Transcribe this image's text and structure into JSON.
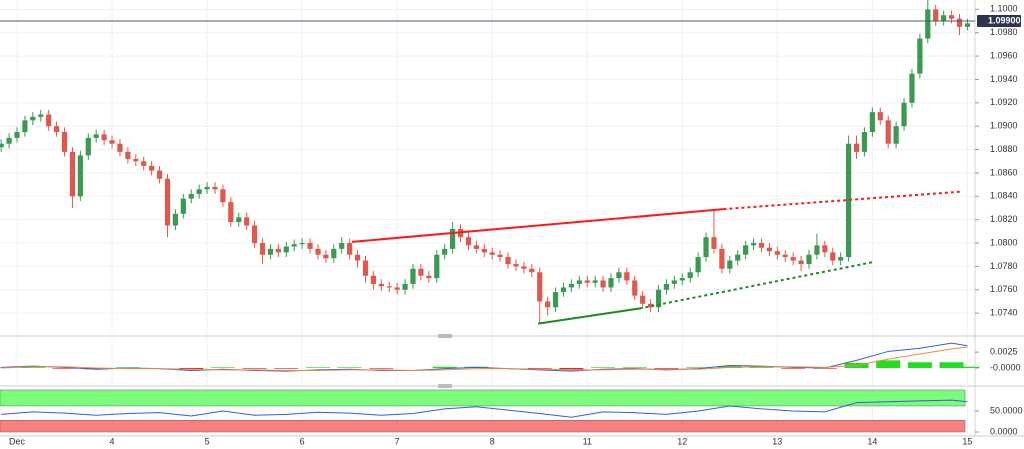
{
  "chart_data": [
    {
      "type": "candlestick",
      "categories": [
        null,
        null,
        "Dec",
        null,
        null,
        null,
        null,
        null,
        null,
        null,
        null,
        null,
        null,
        null,
        "4",
        null,
        null,
        null,
        null,
        null,
        null,
        null,
        null,
        null,
        null,
        null,
        "5",
        null,
        null,
        null,
        null,
        null,
        null,
        null,
        null,
        null,
        null,
        null,
        "6",
        null,
        null,
        null,
        null,
        null,
        null,
        null,
        null,
        null,
        null,
        null,
        "7",
        null,
        null,
        null,
        null,
        null,
        null,
        null,
        null,
        null,
        null,
        null,
        "8",
        null,
        null,
        null,
        null,
        null,
        null,
        null,
        null,
        null,
        null,
        null,
        "11",
        null,
        null,
        null,
        null,
        null,
        null,
        null,
        null,
        null,
        null,
        null,
        "12",
        null,
        null,
        null,
        null,
        null,
        null,
        null,
        null,
        null,
        null,
        null,
        "13",
        null,
        null,
        null,
        null,
        null,
        null,
        null,
        null,
        null,
        null,
        null,
        "14",
        null,
        null,
        null,
        null,
        null,
        null,
        null,
        null,
        null,
        null,
        null,
        "15"
      ],
      "open": [
        1.0882,
        1.0885,
        1.089,
        1.0895,
        1.0905,
        1.0908,
        1.091,
        1.09,
        1.0895,
        1.0878,
        1.084,
        1.0875,
        1.089,
        1.0893,
        1.0888,
        1.0885,
        1.0878,
        1.0872,
        1.087,
        1.0866,
        1.0862,
        1.0855,
        1.0815,
        1.0825,
        1.0838,
        1.0842,
        1.0846,
        1.0848,
        1.0846,
        1.0835,
        1.0818,
        1.0822,
        1.0815,
        1.08,
        1.079,
        1.0795,
        1.0792,
        1.0797,
        1.0799,
        1.08,
        1.0795,
        1.079,
        1.0787,
        1.0795,
        1.08,
        1.079,
        1.0785,
        1.0772,
        1.0765,
        1.0763,
        1.0762,
        1.076,
        1.0765,
        1.0778,
        1.0772,
        1.077,
        1.079,
        1.0795,
        1.0812,
        1.0805,
        1.0798,
        1.0795,
        1.0792,
        1.079,
        1.0788,
        1.0782,
        1.078,
        1.0778,
        1.0775,
        1.075,
        1.0745,
        1.0758,
        1.0762,
        1.0765,
        1.0768,
        1.0766,
        1.0768,
        1.0762,
        1.077,
        1.0775,
        1.0768,
        1.0755,
        1.0748,
        1.0745,
        1.076,
        1.0765,
        1.0768,
        1.077,
        1.0775,
        1.0788,
        1.0805,
        1.0795,
        1.0778,
        1.0785,
        1.079,
        1.0798,
        1.08,
        1.0796,
        1.0793,
        1.079,
        1.0788,
        1.0785,
        1.0782,
        1.079,
        1.0798,
        1.0792,
        1.0785,
        1.0788,
        1.0885,
        1.0878,
        1.0895,
        1.0912,
        1.0905,
        1.0885,
        1.09,
        1.092,
        1.0945,
        1.0975,
        1.1,
        1.099,
        1.0995,
        1.0992,
        1.0985
      ],
      "high": [
        1.0889,
        1.0894,
        1.0899,
        1.0909,
        1.0912,
        1.0914,
        1.0914,
        1.0904,
        1.0899,
        1.0882,
        1.0879,
        1.0894,
        1.0897,
        1.0897,
        1.0892,
        1.0889,
        1.0882,
        1.0876,
        1.0874,
        1.087,
        1.0866,
        1.0859,
        1.0829,
        1.0842,
        1.0846,
        1.085,
        1.0852,
        1.0852,
        1.085,
        1.0839,
        1.0826,
        1.0826,
        1.0819,
        1.0804,
        1.0799,
        1.0799,
        1.0801,
        1.0803,
        1.0804,
        1.0804,
        1.0799,
        1.0794,
        1.0799,
        1.0805,
        1.0804,
        1.0794,
        1.0789,
        1.0776,
        1.0769,
        1.0767,
        1.0766,
        1.0769,
        1.0782,
        1.0782,
        1.0776,
        1.0794,
        1.0799,
        1.0818,
        1.0816,
        1.0809,
        1.0802,
        1.0799,
        1.0796,
        1.0794,
        1.0792,
        1.0786,
        1.0784,
        1.0782,
        1.0779,
        1.0754,
        1.0762,
        1.0766,
        1.0769,
        1.0772,
        1.0772,
        1.0772,
        1.0772,
        1.0774,
        1.0779,
        1.0779,
        1.0772,
        1.0759,
        1.0752,
        1.0764,
        1.0769,
        1.0772,
        1.0774,
        1.0779,
        1.0792,
        1.0809,
        1.0829,
        1.0799,
        1.0789,
        1.0794,
        1.0802,
        1.0804,
        1.0804,
        1.08,
        1.0797,
        1.0794,
        1.0792,
        1.0789,
        1.0794,
        1.0808,
        1.0802,
        1.0796,
        1.0792,
        1.0892,
        1.0892,
        1.0899,
        1.0916,
        1.0916,
        1.0909,
        1.0904,
        1.0924,
        1.0949,
        1.0979,
        1.1008,
        1.1004,
        1.0999,
        1.0999,
        1.0996,
        1.0992
      ],
      "low": [
        1.0878,
        1.0881,
        1.0886,
        1.0891,
        1.0901,
        1.0904,
        1.0896,
        1.0891,
        1.0874,
        1.083,
        1.0836,
        1.0871,
        1.0886,
        1.0884,
        1.0881,
        1.0874,
        1.0868,
        1.0866,
        1.0862,
        1.0858,
        1.0851,
        1.0805,
        1.0811,
        1.0821,
        1.0834,
        1.0838,
        1.0842,
        1.0842,
        1.0831,
        1.0814,
        1.0814,
        1.0811,
        1.0796,
        1.0782,
        1.0786,
        1.0788,
        1.0788,
        1.0793,
        1.0795,
        1.0791,
        1.0786,
        1.0783,
        1.0783,
        1.0791,
        1.0786,
        1.0779,
        1.0766,
        1.076,
        1.0759,
        1.0758,
        1.0756,
        1.0756,
        1.0761,
        1.0768,
        1.0766,
        1.0766,
        1.0786,
        1.0791,
        1.0801,
        1.0794,
        1.0791,
        1.0788,
        1.0786,
        1.0784,
        1.0778,
        1.0776,
        1.0774,
        1.0771,
        1.0732,
        1.0738,
        1.0741,
        1.0754,
        1.0758,
        1.0761,
        1.0762,
        1.0762,
        1.0758,
        1.0758,
        1.0766,
        1.0764,
        1.0751,
        1.0744,
        1.0741,
        1.0741,
        1.0756,
        1.0761,
        1.0764,
        1.0766,
        1.0771,
        1.0784,
        1.0791,
        1.0774,
        1.0774,
        1.0781,
        1.0786,
        1.0794,
        1.0792,
        1.0789,
        1.0786,
        1.0784,
        1.0781,
        1.0776,
        1.0778,
        1.0786,
        1.0788,
        1.0781,
        1.0781,
        1.0784,
        1.0872,
        1.0874,
        1.0891,
        1.0901,
        1.0881,
        1.0881,
        1.0896,
        1.0916,
        1.0941,
        1.0971,
        1.0986,
        1.0986,
        1.0988,
        1.0978,
        1.0982
      ],
      "close": [
        1.0885,
        1.089,
        1.0895,
        1.0905,
        1.0908,
        1.091,
        1.09,
        1.0895,
        1.0878,
        1.084,
        1.0875,
        1.089,
        1.0893,
        1.0888,
        1.0885,
        1.0878,
        1.0872,
        1.087,
        1.0866,
        1.0862,
        1.0855,
        1.0815,
        1.0825,
        1.0838,
        1.0842,
        1.0846,
        1.0848,
        1.0846,
        1.0835,
        1.0818,
        1.0822,
        1.0815,
        1.08,
        1.079,
        1.0795,
        1.0792,
        1.0797,
        1.0799,
        1.08,
        1.0795,
        1.079,
        1.0787,
        1.0795,
        1.08,
        1.079,
        1.0785,
        1.0772,
        1.0765,
        1.0763,
        1.0762,
        1.076,
        1.0765,
        1.0778,
        1.0772,
        1.077,
        1.079,
        1.0795,
        1.0812,
        1.0805,
        1.0798,
        1.0795,
        1.0792,
        1.079,
        1.0788,
        1.0782,
        1.078,
        1.0778,
        1.0775,
        1.075,
        1.0745,
        1.0758,
        1.0762,
        1.0765,
        1.0768,
        1.0766,
        1.0768,
        1.0762,
        1.077,
        1.0775,
        1.0768,
        1.0755,
        1.0748,
        1.0745,
        1.076,
        1.0765,
        1.0768,
        1.077,
        1.0775,
        1.0788,
        1.0805,
        1.0795,
        1.0778,
        1.0785,
        1.079,
        1.0798,
        1.08,
        1.0796,
        1.0793,
        1.079,
        1.0788,
        1.0785,
        1.0782,
        1.079,
        1.0798,
        1.0792,
        1.0785,
        1.0788,
        1.0885,
        1.0878,
        1.0895,
        1.0912,
        1.0905,
        1.0885,
        1.09,
        1.092,
        1.0945,
        1.0975,
        1.1,
        1.099,
        1.0995,
        1.0992,
        1.0985,
        1.0988
      ],
      "up_color": "#3a9a4f",
      "down_color": "#e2574c",
      "ylim": [
        1.0723,
        1.1008
      ],
      "yticks": [
        {
          "value": 1.074,
          "label": "1.0740"
        },
        {
          "value": 1.076,
          "label": "1.0760"
        },
        {
          "value": 1.078,
          "label": "1.0780"
        },
        {
          "value": 1.08,
          "label": "1.0800"
        },
        {
          "value": 1.082,
          "label": "1.0820"
        },
        {
          "value": 1.084,
          "label": "1.0840"
        },
        {
          "value": 1.086,
          "label": "1.0860"
        },
        {
          "value": 1.088,
          "label": "1.0880"
        },
        {
          "value": 1.09,
          "label": "1.0900"
        },
        {
          "value": 1.092,
          "label": "1.0920"
        },
        {
          "value": 1.094,
          "label": "1.0940"
        },
        {
          "value": 1.096,
          "label": "1.0960"
        },
        {
          "value": 1.098,
          "label": "1.0980"
        },
        {
          "value": 1.1,
          "label": "1.1000"
        }
      ],
      "grid": true,
      "last_price": {
        "value": 1.099,
        "label": "1.09900"
      },
      "trendlines": [
        {
          "color": "#ff1a1a",
          "style": [
            "solid",
            "dotted"
          ],
          "x": [
            44.3,
            91.2,
            121.3
          ],
          "y": [
            1.0801,
            1.0829,
            1.0844
          ]
        },
        {
          "color": "#1e8a1e",
          "style": [
            "solid",
            "dotted"
          ],
          "x": [
            67.8,
            80.6,
            110.3
          ],
          "y": [
            1.0731,
            1.0744,
            1.0784
          ]
        }
      ]
    },
    {
      "type": "macd",
      "x": [
        0,
        4,
        8,
        12,
        16,
        20,
        24,
        28,
        32,
        36,
        40,
        44,
        48,
        52,
        56,
        60,
        64,
        68,
        72,
        76,
        80,
        84,
        88,
        92,
        96,
        100,
        104,
        108,
        112,
        116,
        120,
        122
      ],
      "ylim": [
        -0.0022,
        0.0044
      ],
      "yticks": [
        {
          "value": 0.0025,
          "label": "0.0025"
        },
        {
          "value": 0,
          "label": "-0.0000"
        }
      ],
      "series": [
        {
          "color": "#3b5bdb",
          "values": [
            0.0001,
            0.0003,
            0.0001,
            -0.0002,
            0.0,
            -0.0001,
            -0.0004,
            -0.0002,
            -0.0004,
            -0.0005,
            -0.0003,
            -0.0002,
            -0.0004,
            -0.0004,
            -0.0001,
            0.0001,
            -0.0001,
            -0.0003,
            -0.0005,
            -0.0002,
            -0.0001,
            -0.0003,
            -0.0001,
            0.0004,
            0.0003,
            0.0001,
            0.0,
            0.0012,
            0.0026,
            0.0031,
            0.0039,
            0.0035
          ]
        },
        {
          "color": "#f08c3a",
          "values": [
            0.0,
            0.0002,
            0.0002,
            0.0,
            -0.0001,
            -0.0001,
            -0.0002,
            -0.0003,
            -0.0003,
            -0.0004,
            -0.0004,
            -0.0003,
            -0.0003,
            -0.0004,
            -0.0003,
            -0.0001,
            -0.0001,
            -0.0002,
            -0.0003,
            -0.0003,
            -0.0002,
            -0.0002,
            -0.0002,
            0.0001,
            0.0002,
            0.0002,
            0.0001,
            0.0004,
            0.0014,
            0.0022,
            0.003,
            0.0033
          ]
        }
      ],
      "histogram": {
        "up_color": "#22dd22",
        "down_color": "#ee2222",
        "values": [
          0.0001,
          0.0001,
          -0.0001,
          -0.0002,
          0.0001,
          0.0,
          -0.0002,
          0.0001,
          -0.0001,
          -0.0001,
          0.0001,
          0.0001,
          -0.0001,
          0.0,
          0.0002,
          0.0002,
          0.0,
          -0.0001,
          -0.0002,
          0.0001,
          0.0001,
          -0.0001,
          0.0001,
          0.0003,
          0.0001,
          -0.0001,
          -0.0001,
          0.0008,
          0.0012,
          0.0009,
          0.0009,
          0.0002
        ]
      }
    },
    {
      "type": "oscillator",
      "x": [
        0,
        4,
        8,
        12,
        16,
        20,
        24,
        28,
        32,
        36,
        40,
        44,
        48,
        52,
        56,
        60,
        64,
        68,
        72,
        76,
        80,
        84,
        88,
        92,
        96,
        100,
        104,
        108,
        112,
        116,
        120,
        122
      ],
      "ylim": [
        0,
        100
      ],
      "yticks": [
        {
          "value": 50,
          "label": "50.0000"
        },
        {
          "value": 0,
          "label": "0.0000"
        }
      ],
      "bands": [
        {
          "range": [
            62,
            100
          ],
          "color": "#7dfb7d"
        },
        {
          "range": [
            0,
            28
          ],
          "color": "#f98080"
        }
      ],
      "series": [
        {
          "color": "#3b5bdb",
          "values": [
            42,
            48,
            45,
            40,
            44,
            46,
            38,
            50,
            40,
            42,
            47,
            45,
            40,
            44,
            55,
            60,
            52,
            44,
            35,
            48,
            46,
            42,
            50,
            62,
            55,
            50,
            48,
            70,
            72,
            74,
            76,
            72
          ]
        }
      ]
    }
  ]
}
